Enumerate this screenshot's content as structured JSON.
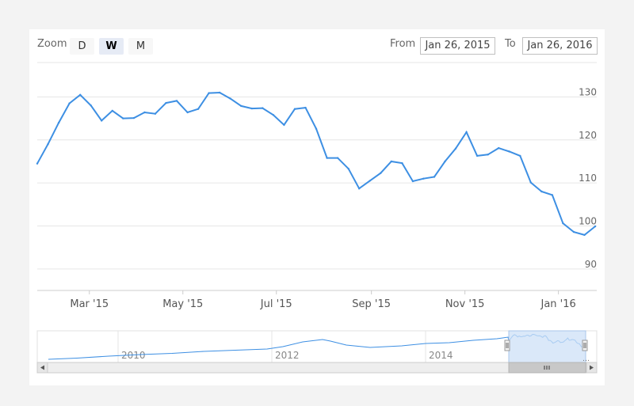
{
  "zoom": {
    "label": "Zoom",
    "buttons": [
      "D",
      "W",
      "M"
    ],
    "active": "W"
  },
  "range": {
    "from_label": "From",
    "from_value": "Jan 26, 2015",
    "to_label": "To",
    "to_value": "Jan 26, 2016"
  },
  "colors": {
    "line": "#3d8fe3",
    "grid": "#e6e6e6",
    "navigator_fill": "#cde0f7"
  },
  "chart_data": {
    "type": "line",
    "title": "",
    "xlabel": "",
    "ylabel": "",
    "ylim": [
      85,
      138
    ],
    "y_ticks": [
      90,
      100,
      110,
      120,
      130
    ],
    "x_ticks": [
      {
        "label": "Mar '15",
        "date": "2015-03-01"
      },
      {
        "label": "May '15",
        "date": "2015-05-01"
      },
      {
        "label": "Jul '15",
        "date": "2015-07-01"
      },
      {
        "label": "Sep '15",
        "date": "2015-09-01"
      },
      {
        "label": "Nov '15",
        "date": "2015-11-01"
      },
      {
        "label": "Jan '16",
        "date": "2016-01-01"
      }
    ],
    "x": [
      "2015-01-26",
      "2015-02-02",
      "2015-02-09",
      "2015-02-16",
      "2015-02-23",
      "2015-03-02",
      "2015-03-09",
      "2015-03-16",
      "2015-03-23",
      "2015-03-30",
      "2015-04-06",
      "2015-04-13",
      "2015-04-20",
      "2015-04-27",
      "2015-05-04",
      "2015-05-11",
      "2015-05-18",
      "2015-05-25",
      "2015-06-01",
      "2015-06-08",
      "2015-06-15",
      "2015-06-22",
      "2015-06-29",
      "2015-07-06",
      "2015-07-13",
      "2015-07-20",
      "2015-07-27",
      "2015-08-03",
      "2015-08-10",
      "2015-08-17",
      "2015-08-24",
      "2015-08-31",
      "2015-09-07",
      "2015-09-14",
      "2015-09-21",
      "2015-09-28",
      "2015-10-05",
      "2015-10-12",
      "2015-10-19",
      "2015-10-26",
      "2015-11-02",
      "2015-11-09",
      "2015-11-16",
      "2015-11-23",
      "2015-11-30",
      "2015-12-07",
      "2015-12-14",
      "2015-12-21",
      "2015-12-28",
      "2016-01-04",
      "2016-01-11",
      "2016-01-18",
      "2016-01-25"
    ],
    "series": [
      {
        "values": [
          114.5,
          119,
          124,
          128.5,
          130.5,
          128,
          124.5,
          126.8,
          125,
          125.1,
          126.4,
          126.1,
          128.6,
          129.1,
          126.4,
          127.2,
          130.9,
          131,
          129.6,
          127.9,
          127.3,
          127.4,
          125.8,
          123.5,
          127.2,
          127.5,
          122.6,
          115.8,
          115.8,
          113.3,
          108.7,
          110.5,
          112.3,
          115,
          114.6,
          110.4,
          111,
          111.4,
          115,
          118,
          121.8,
          116.3,
          116.6,
          118.1,
          117.3,
          116.3,
          110.1,
          108,
          107.2,
          100.6,
          98.6,
          97.9,
          99.9
        ]
      }
    ],
    "navigator": {
      "x_ticks": [
        "2010",
        "2012",
        "2014"
      ],
      "selected_range": [
        "2015-01-26",
        "2016-01-26"
      ]
    }
  }
}
